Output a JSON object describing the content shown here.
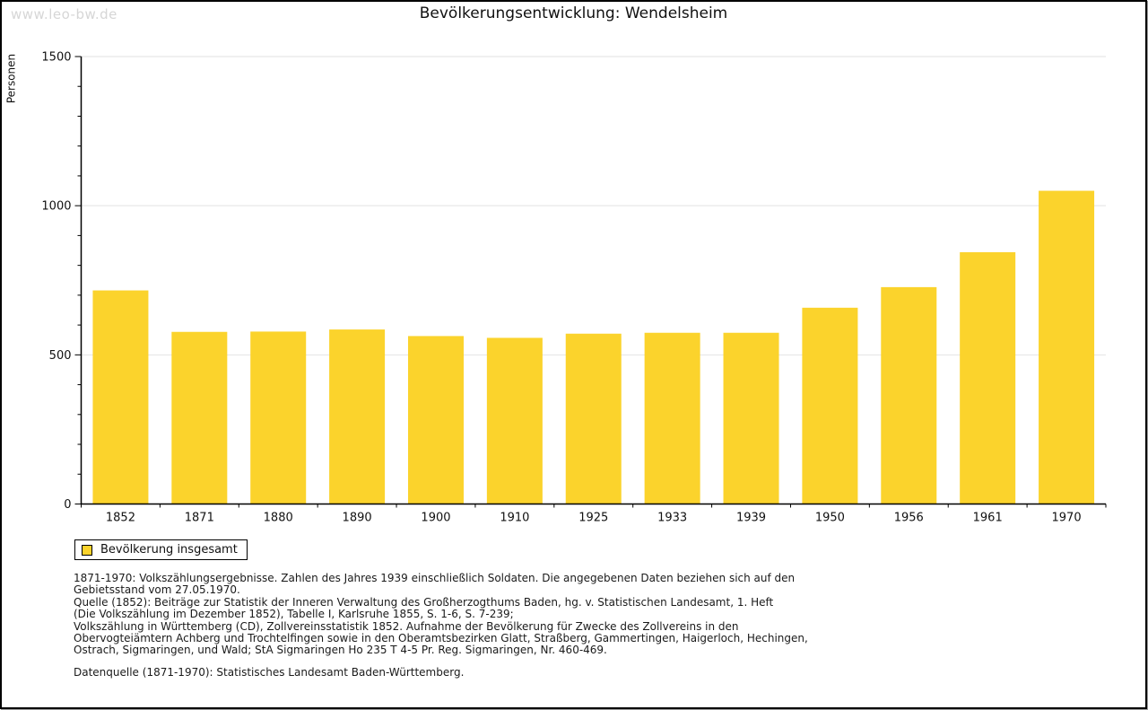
{
  "page": {
    "watermark": "www.leo-bw.de",
    "title": "Bevölkerungsentwicklung: Wendelsheim"
  },
  "chart_data": {
    "type": "bar",
    "title": "Bevölkerungsentwicklung: Wendelsheim",
    "xlabel": "",
    "ylabel": "Personen",
    "ylim": [
      0,
      1500
    ],
    "yticks": [
      0,
      500,
      1000,
      1500
    ],
    "minor_tick_step": 100,
    "grid": true,
    "categories": [
      "1852",
      "1871",
      "1880",
      "1890",
      "1900",
      "1910",
      "1925",
      "1933",
      "1939",
      "1950",
      "1956",
      "1961",
      "1970"
    ],
    "values": [
      716,
      577,
      578,
      585,
      563,
      557,
      571,
      574,
      574,
      658,
      727,
      844,
      1050
    ],
    "bar_color": "#FBD32C",
    "grid_color": "#E2E2E2",
    "axis_color": "#000000",
    "tick_label_color": "#111111",
    "legend": {
      "label": "Bevölkerung insgesamt",
      "swatch_color": "#FBD32C",
      "position": "bottom-left"
    }
  },
  "footnotes": {
    "lines": [
      "1871-1970: Volkszählungsergebnisse. Zahlen des Jahres 1939 einschließlich Soldaten. Die angegebenen Daten beziehen sich auf den",
      "Gebietsstand vom 27.05.1970.",
      "Quelle (1852): Beiträge zur Statistik der Inneren Verwaltung des Großherzogthums Baden, hg. v. Statistischen Landesamt, 1. Heft",
      "(Die Volkszählung im Dezember 1852), Tabelle I, Karlsruhe 1855, S. 1-6, S. 7-239;",
      "Volkszählung in Württemberg (CD), Zollvereinsstatistik 1852. Aufnahme der Bevölkerung für Zwecke des Zollvereins in den",
      "Obervogteiämtern Achberg und Trochtelfingen sowie in den Oberamtsbezirken Glatt, Straßberg, Gammertingen, Haigerloch, Hechingen,",
      "Ostrach, Sigmaringen, und Wald; StA Sigmaringen Ho 235 T 4-5 Pr. Reg. Sigmaringen, Nr. 460-469."
    ],
    "datenquelle": "Datenquelle (1871-1970): Statistisches Landesamt Baden-Württemberg."
  }
}
